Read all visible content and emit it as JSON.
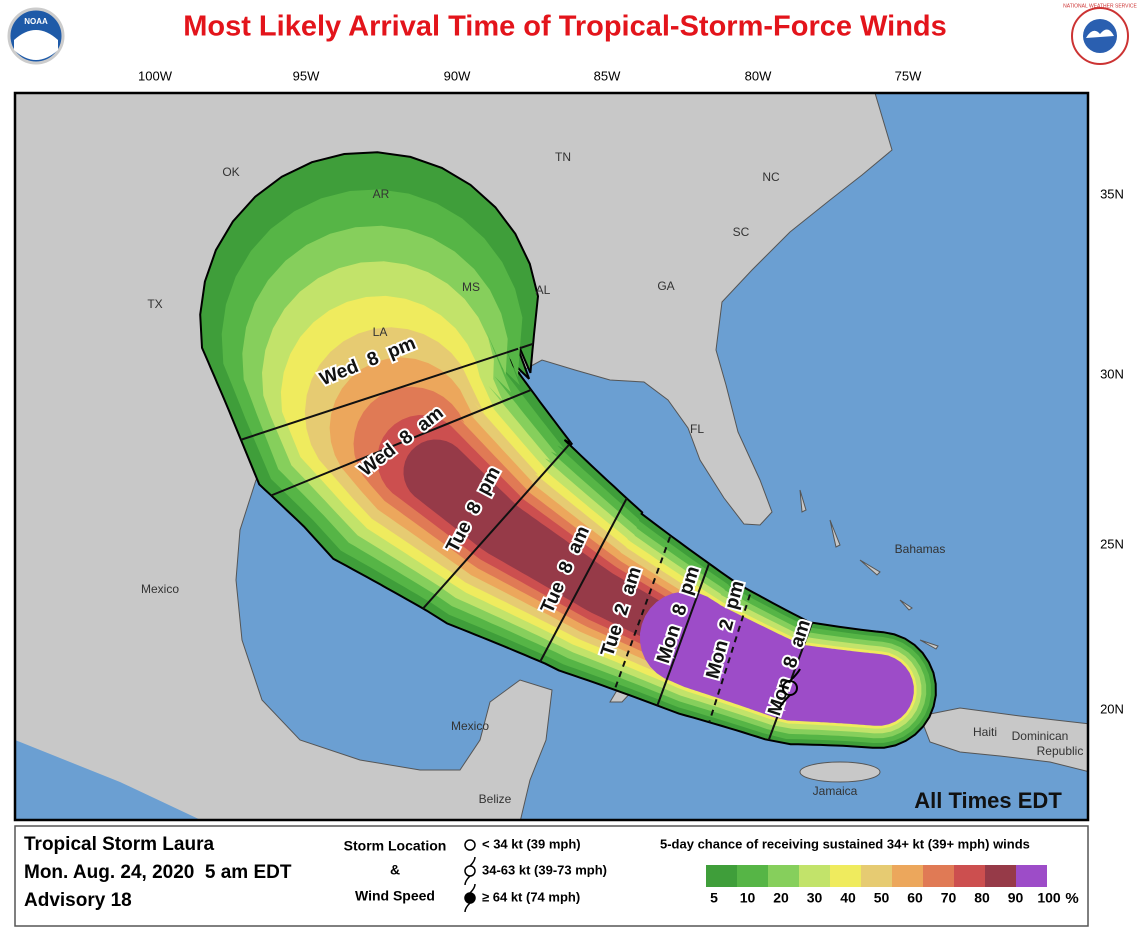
{
  "header": {
    "title": "Most Likely Arrival Time of Tropical-Storm-Force Winds",
    "noaa_logo": "NOAA",
    "nws_logo": "NATIONAL WEATHER SERVICE"
  },
  "map": {
    "lon_labels": [
      "100W",
      "95W",
      "90W",
      "85W",
      "80W",
      "75W"
    ],
    "lat_labels": [
      "35N",
      "30N",
      "25N",
      "20N"
    ],
    "region_labels": [
      "OK",
      "AR",
      "TN",
      "NC",
      "SC",
      "GA",
      "MS",
      "AL",
      "TX",
      "LA",
      "FL",
      "Mexico",
      "Mexico",
      "Bahamas",
      "Haiti",
      "Dominican",
      "Republic",
      "Jamaica",
      "Belize"
    ],
    "time_labels": [
      "Wed 8 pm",
      "Wed 8 am",
      "Tue 8 pm",
      "Tue 8 am",
      "Tue 2 am",
      "Mon 8 pm",
      "Mon 2 pm",
      "Mon 8 am"
    ],
    "note": "All Times EDT"
  },
  "legend": {
    "storm_name": "Tropical Storm Laura",
    "date": "Mon. Aug. 24, 2020  5 am EDT",
    "advisory": "Advisory 18",
    "location_title": [
      "Storm Location",
      "&",
      "Wind Speed"
    ],
    "symbols": [
      "< 34 kt (39 mph)",
      "34-63 kt (39-73 mph)",
      "≥ 64 kt (74 mph)"
    ],
    "scale_title": "5-day chance of receiving sustained 34+ kt (39+ mph) winds",
    "scale_labels": [
      5,
      10,
      20,
      30,
      40,
      50,
      60,
      70,
      80,
      90,
      100
    ],
    "scale_unit": "%",
    "scale_colors": [
      "#3f9e3a",
      "#56b546",
      "#86cf5c",
      "#c2e36a",
      "#efeb5e",
      "#e6cb72",
      "#eca75c",
      "#e07a55",
      "#cc4f4f",
      "#963a48",
      "#9d4cc8"
    ]
  }
}
